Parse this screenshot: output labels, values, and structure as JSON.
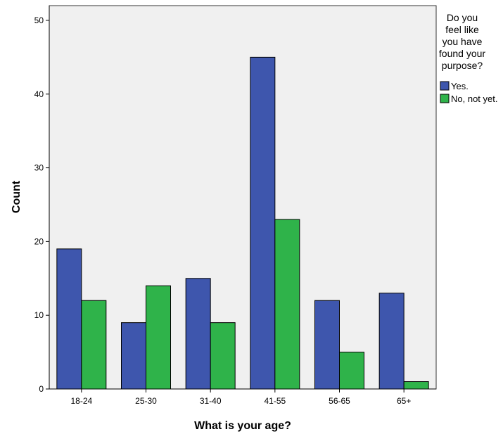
{
  "chart_data": {
    "type": "bar",
    "title": "",
    "xlabel": "What is your age?",
    "ylabel": "Count",
    "categories": [
      "18-24",
      "25-30",
      "31-40",
      "41-55",
      "56-65",
      "65+"
    ],
    "series": [
      {
        "name": "Yes.",
        "values": [
          19,
          9,
          15,
          45,
          12,
          13
        ],
        "color": "#3e56ad"
      },
      {
        "name": "No, not yet.",
        "values": [
          12,
          14,
          9,
          23,
          5,
          1
        ],
        "color": "#2fb34a"
      }
    ],
    "ylim": [
      0,
      52
    ],
    "yticks": [
      0,
      10,
      20,
      30,
      40,
      50
    ],
    "grid": false,
    "legend": {
      "title_lines": [
        "Do you",
        "feel like",
        "you have",
        "found your",
        "purpose?"
      ],
      "placement": "right"
    },
    "background_color": "#f0f0f0"
  }
}
